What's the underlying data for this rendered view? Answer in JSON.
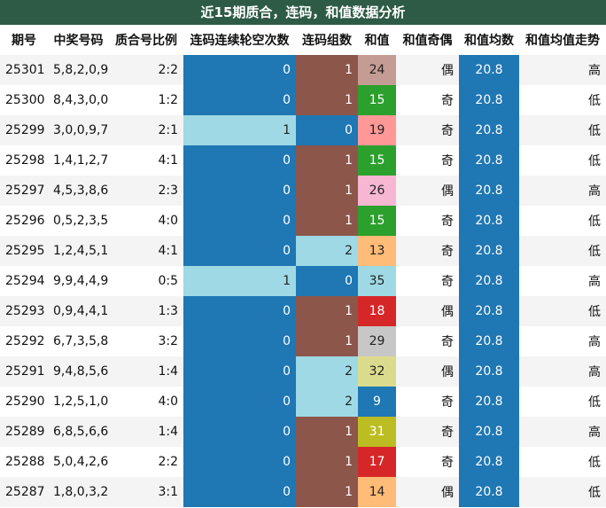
{
  "title": "近15期质合，连码，和值数据分析",
  "headers": [
    "期号",
    "中奖号码",
    "质合号比例",
    "连码连续轮空次数",
    "连码组数",
    "和值",
    "和值奇偶",
    "和值均数",
    "和值均值走势"
  ],
  "colors": {
    "header_bg": "#2e5b45",
    "blue": "#1f77b4",
    "light_blue": "#9ed9e5",
    "brown": "#8c564b"
  },
  "rows": [
    {
      "issue": "25301",
      "numbers": "5,8,2,0,9",
      "ratio": "2:2",
      "gap": "0",
      "groups": "1",
      "sum": "24",
      "sum_color": "#c49c94",
      "parity": "偶",
      "avg": "20.8",
      "trend": "高"
    },
    {
      "issue": "25300",
      "numbers": "8,4,3,0,0",
      "ratio": "1:2",
      "gap": "0",
      "groups": "1",
      "sum": "15",
      "sum_color": "#2ca02c",
      "parity": "奇",
      "avg": "20.8",
      "trend": "低"
    },
    {
      "issue": "25299",
      "numbers": "3,0,0,9,7",
      "ratio": "2:1",
      "gap": "1",
      "groups": "0",
      "sum": "19",
      "sum_color": "#ff9896",
      "parity": "奇",
      "avg": "20.8",
      "trend": "低"
    },
    {
      "issue": "25298",
      "numbers": "1,4,1,2,7",
      "ratio": "4:1",
      "gap": "0",
      "groups": "1",
      "sum": "15",
      "sum_color": "#2ca02c",
      "parity": "奇",
      "avg": "20.8",
      "trend": "低"
    },
    {
      "issue": "25297",
      "numbers": "4,5,3,8,6",
      "ratio": "2:3",
      "gap": "0",
      "groups": "1",
      "sum": "26",
      "sum_color": "#f7b6d2",
      "parity": "偶",
      "avg": "20.8",
      "trend": "高"
    },
    {
      "issue": "25296",
      "numbers": "0,5,2,3,5",
      "ratio": "4:0",
      "gap": "0",
      "groups": "1",
      "sum": "15",
      "sum_color": "#2ca02c",
      "parity": "奇",
      "avg": "20.8",
      "trend": "低"
    },
    {
      "issue": "25295",
      "numbers": "1,2,4,5,1",
      "ratio": "4:1",
      "gap": "0",
      "groups": "2",
      "sum": "13",
      "sum_color": "#ffbb78",
      "parity": "奇",
      "avg": "20.8",
      "trend": "低"
    },
    {
      "issue": "25294",
      "numbers": "9,9,4,4,9",
      "ratio": "0:5",
      "gap": "1",
      "groups": "0",
      "sum": "35",
      "sum_color": "#9ed9e5",
      "parity": "奇",
      "avg": "20.8",
      "trend": "高"
    },
    {
      "issue": "25293",
      "numbers": "0,9,4,4,1",
      "ratio": "1:3",
      "gap": "0",
      "groups": "1",
      "sum": "18",
      "sum_color": "#d62728",
      "parity": "偶",
      "avg": "20.8",
      "trend": "低"
    },
    {
      "issue": "25292",
      "numbers": "6,7,3,5,8",
      "ratio": "3:2",
      "gap": "0",
      "groups": "1",
      "sum": "29",
      "sum_color": "#c7c7c7",
      "parity": "奇",
      "avg": "20.8",
      "trend": "高"
    },
    {
      "issue": "25291",
      "numbers": "9,4,8,5,6",
      "ratio": "1:4",
      "gap": "0",
      "groups": "2",
      "sum": "32",
      "sum_color": "#dbdb8d",
      "parity": "偶",
      "avg": "20.8",
      "trend": "高"
    },
    {
      "issue": "25290",
      "numbers": "1,2,5,1,0",
      "ratio": "4:0",
      "gap": "0",
      "groups": "2",
      "sum": "9",
      "sum_color": "#1f77b4",
      "parity": "奇",
      "avg": "20.8",
      "trend": "低"
    },
    {
      "issue": "25289",
      "numbers": "6,8,5,6,6",
      "ratio": "1:4",
      "gap": "0",
      "groups": "1",
      "sum": "31",
      "sum_color": "#bcbd22",
      "parity": "奇",
      "avg": "20.8",
      "trend": "高"
    },
    {
      "issue": "25288",
      "numbers": "5,0,4,2,6",
      "ratio": "2:2",
      "gap": "0",
      "groups": "1",
      "sum": "17",
      "sum_color": "#d62728",
      "parity": "奇",
      "avg": "20.8",
      "trend": "低"
    },
    {
      "issue": "25287",
      "numbers": "1,8,0,3,2",
      "ratio": "3:1",
      "gap": "0",
      "groups": "1",
      "sum": "14",
      "sum_color": "#ffbb78",
      "parity": "偶",
      "avg": "20.8",
      "trend": "低"
    }
  ]
}
